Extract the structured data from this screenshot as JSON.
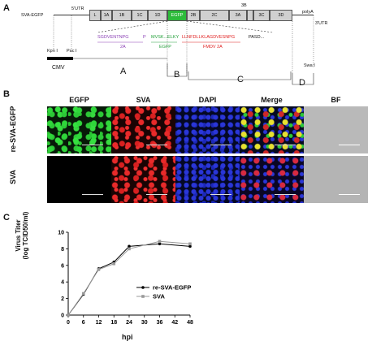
{
  "panelA": {
    "letter": "A",
    "construct_label": "SVA-EGFP",
    "utr5": "5'UTR",
    "utr3": "3'UTR",
    "polyA": "polyA",
    "segments": [
      "L",
      "1A",
      "1B",
      "1C",
      "1D",
      "EGFP",
      "2B",
      "2C",
      "3A",
      "3C",
      "3D"
    ],
    "segment_3b": "3B",
    "insert_seq_2a": "SGDVENTNPG",
    "insert_p": "P",
    "insert_seq_egfp": "MVSK...ELKY",
    "insert_seq_fmdv": "LLNFDLLKLAGDVESNPG",
    "insert_pasd": "PASD...",
    "note_2a": "2A",
    "note_egfp": "EGFP",
    "note_fmdv": "FMDV 2A",
    "kpn": "Kpn I",
    "pac": "Pac I",
    "swa": "Swa I",
    "cmv": "CMV",
    "fragments": [
      "A",
      "B",
      "C",
      "D"
    ]
  },
  "panelB": {
    "letter": "B",
    "columns": [
      "EGFP",
      "SVA",
      "DAPI",
      "Merge",
      "BF"
    ],
    "rows": [
      "re-SVA-EGFP",
      "SVA"
    ]
  },
  "panelC": {
    "letter": "C",
    "ylabel_line1": "Virus Titer",
    "ylabel_line2": "(log TCID50/ml)",
    "xlabel": "hpi"
  },
  "chart_data": {
    "type": "line",
    "title": "",
    "xlabel": "hpi",
    "ylabel": "Virus Titer (log TCID50/ml)",
    "x": [
      0,
      6,
      12,
      18,
      24,
      36,
      48
    ],
    "xticks": [
      0,
      6,
      12,
      18,
      24,
      30,
      36,
      42,
      48
    ],
    "yticks": [
      0,
      2,
      4,
      6,
      8,
      10
    ],
    "xlim": [
      0,
      48
    ],
    "ylim": [
      0,
      10
    ],
    "grid": false,
    "legend_position": "right",
    "series": [
      {
        "name": "re-SVA-EGFP",
        "values": [
          0,
          2.5,
          5.6,
          6.4,
          8.3,
          8.6,
          8.3
        ],
        "color": "#000000",
        "marker": "circle"
      },
      {
        "name": "SVA",
        "values": [
          0,
          2.6,
          5.5,
          6.2,
          8.0,
          8.9,
          8.6
        ],
        "color": "#999999",
        "marker": "square"
      }
    ]
  },
  "colors": {
    "egfp_box": "#2dbb3a",
    "seq_purple": "#8a3fb5",
    "seq_green": "#23a03a",
    "seq_red": "#e02020"
  }
}
